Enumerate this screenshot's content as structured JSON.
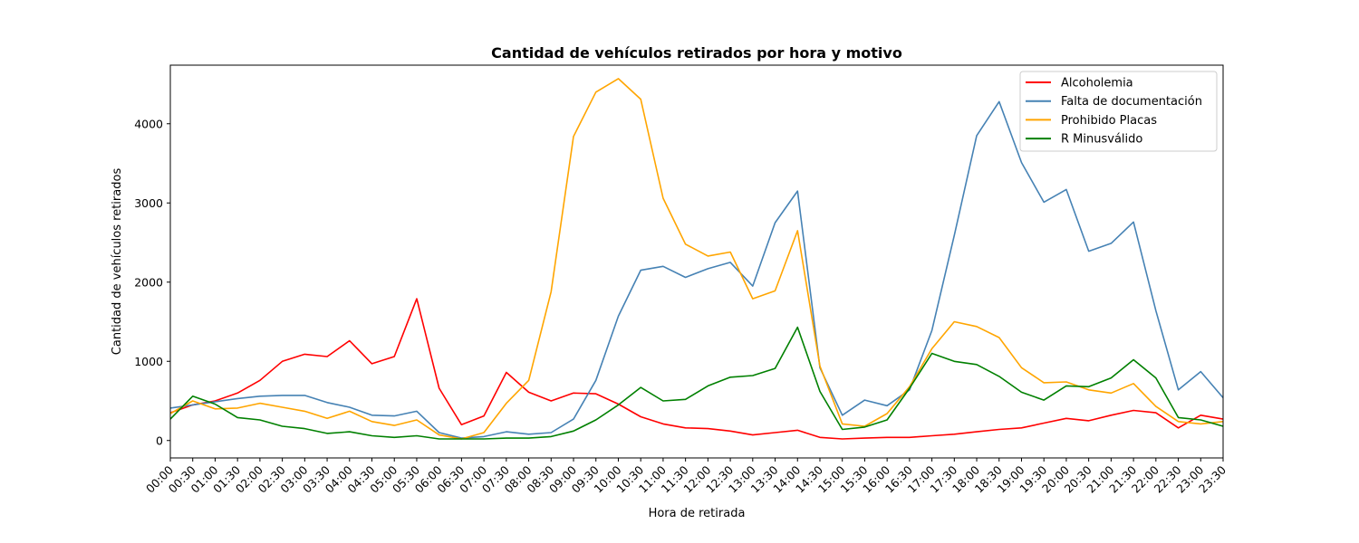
{
  "chart_data": {
    "type": "line",
    "title": "Cantidad de vehículos retirados por hora y motivo",
    "xlabel": "Hora de retirada",
    "ylabel": "Cantidad de vehículos retirados",
    "ylim": [
      -220,
      4740
    ],
    "y_ticks": [
      0,
      1000,
      2000,
      3000,
      4000
    ],
    "grid": false,
    "legend_position": "top-right",
    "categories": [
      "00:00",
      "00:30",
      "01:00",
      "01:30",
      "02:00",
      "02:30",
      "03:00",
      "03:30",
      "04:00",
      "04:30",
      "05:00",
      "05:30",
      "06:00",
      "06:30",
      "07:00",
      "07:30",
      "08:00",
      "08:30",
      "09:00",
      "09:30",
      "10:00",
      "10:30",
      "11:00",
      "11:30",
      "12:00",
      "12:30",
      "13:00",
      "13:30",
      "14:00",
      "14:30",
      "15:00",
      "15:30",
      "16:00",
      "16:30",
      "17:00",
      "17:30",
      "18:00",
      "18:30",
      "19:00",
      "19:30",
      "20:00",
      "20:30",
      "21:00",
      "21:30",
      "22:00",
      "22:30",
      "23:00",
      "23:30"
    ],
    "series": [
      {
        "name": "Alcoholemia",
        "color": "#ff0000",
        "values": [
          350,
          450,
          500,
          600,
          760,
          1000,
          1090,
          1060,
          1260,
          970,
          1060,
          1790,
          660,
          200,
          310,
          860,
          610,
          500,
          600,
          590,
          460,
          300,
          210,
          160,
          150,
          120,
          70,
          100,
          130,
          40,
          20,
          30,
          40,
          40,
          60,
          80,
          110,
          140,
          160,
          220,
          280,
          250,
          320,
          380,
          350,
          160,
          320,
          270
        ]
      },
      {
        "name": "Falta de documentación",
        "color": "#4682b4",
        "values": [
          410,
          450,
          490,
          530,
          560,
          570,
          570,
          480,
          420,
          320,
          310,
          370,
          100,
          30,
          50,
          110,
          80,
          100,
          270,
          760,
          1570,
          2150,
          2200,
          2060,
          2170,
          2250,
          1950,
          2750,
          3150,
          920,
          320,
          510,
          440,
          640,
          1390,
          2590,
          3850,
          4280,
          3510,
          3010,
          3170,
          2390,
          2490,
          2760,
          1640,
          640,
          870,
          540
        ]
      },
      {
        "name": "Prohibido Placas",
        "color": "#ffa500",
        "values": [
          340,
          500,
          400,
          410,
          470,
          420,
          370,
          280,
          370,
          240,
          190,
          260,
          70,
          20,
          100,
          470,
          760,
          1880,
          3840,
          4400,
          4570,
          4310,
          3060,
          2480,
          2330,
          2380,
          1790,
          1890,
          2650,
          940,
          210,
          180,
          340,
          680,
          1160,
          1500,
          1440,
          1300,
          920,
          730,
          740,
          640,
          600,
          720,
          430,
          240,
          210,
          240
        ]
      },
      {
        "name": "R Minusválido",
        "color": "#008000",
        "values": [
          270,
          560,
          460,
          290,
          260,
          180,
          150,
          90,
          110,
          60,
          40,
          60,
          20,
          20,
          20,
          30,
          30,
          50,
          120,
          260,
          450,
          670,
          500,
          520,
          690,
          800,
          820,
          910,
          1430,
          620,
          140,
          170,
          260,
          660,
          1100,
          1000,
          960,
          810,
          610,
          510,
          690,
          680,
          790,
          1020,
          790,
          290,
          260,
          180
        ]
      }
    ]
  }
}
